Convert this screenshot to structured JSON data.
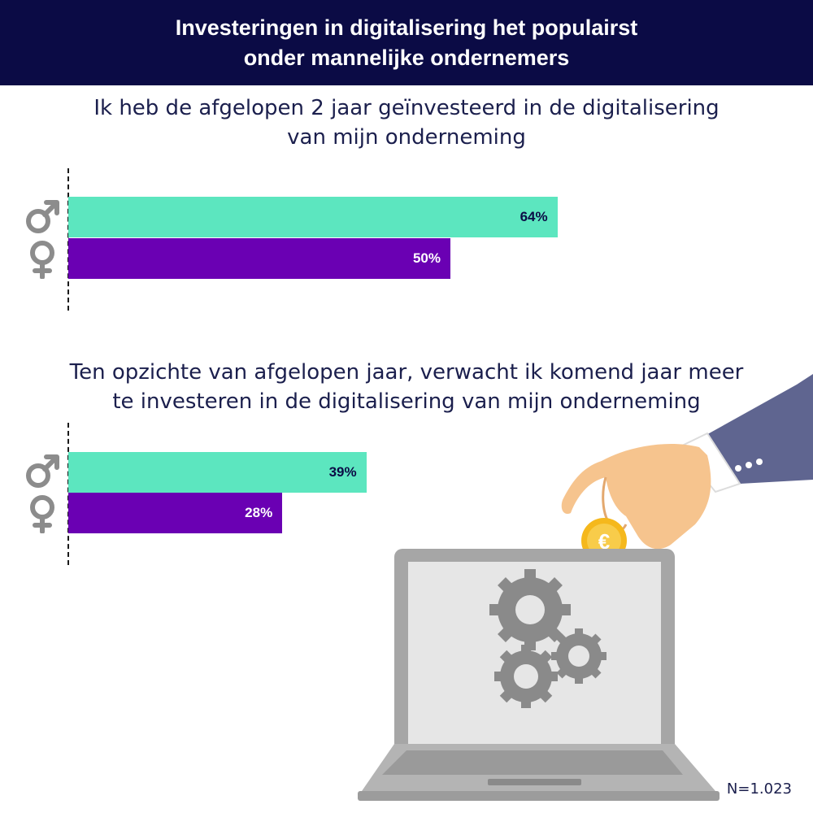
{
  "header": {
    "title_line1": "Investeringen in digitalisering het populairst",
    "title_line2": "onder mannelijke ondernemers"
  },
  "questions": {
    "q1_line1": "Ik heb de afgelopen 2 jaar geïnvesteerd in de digitalisering",
    "q1_line2": "van mijn onderneming",
    "q2_line1": "Ten opzichte van afgelopen jaar, verwacht ik komend jaar meer",
    "q2_line2": "te investeren in de digitalisering van mijn onderneming"
  },
  "colors": {
    "header_bg": "#0b0b45",
    "male": "#5ce6bf",
    "female": "#6a00b3",
    "icon_gray": "#8c8c8c"
  },
  "icons": {
    "male": "male-symbol-icon",
    "female": "female-symbol-icon",
    "coin": "euro-coin-icon",
    "laptop": "laptop-gears-icon"
  },
  "chart_data": [
    {
      "type": "bar",
      "orientation": "horizontal",
      "title": "Ik heb de afgelopen 2 jaar geïnvesteerd in de digitalisering van mijn onderneming",
      "categories": [
        "Man",
        "Vrouw"
      ],
      "values": [
        64,
        50
      ],
      "labels": [
        "64%",
        "50%"
      ],
      "unit": "%",
      "xlim": [
        0,
        100
      ]
    },
    {
      "type": "bar",
      "orientation": "horizontal",
      "title": "Ten opzichte van afgelopen jaar, verwacht ik komend jaar meer te investeren in de digitalisering van mijn onderneming",
      "categories": [
        "Man",
        "Vrouw"
      ],
      "values": [
        39,
        28
      ],
      "labels": [
        "39%",
        "28%"
      ],
      "unit": "%",
      "xlim": [
        0,
        100
      ]
    }
  ],
  "footnote": "N=1.023"
}
